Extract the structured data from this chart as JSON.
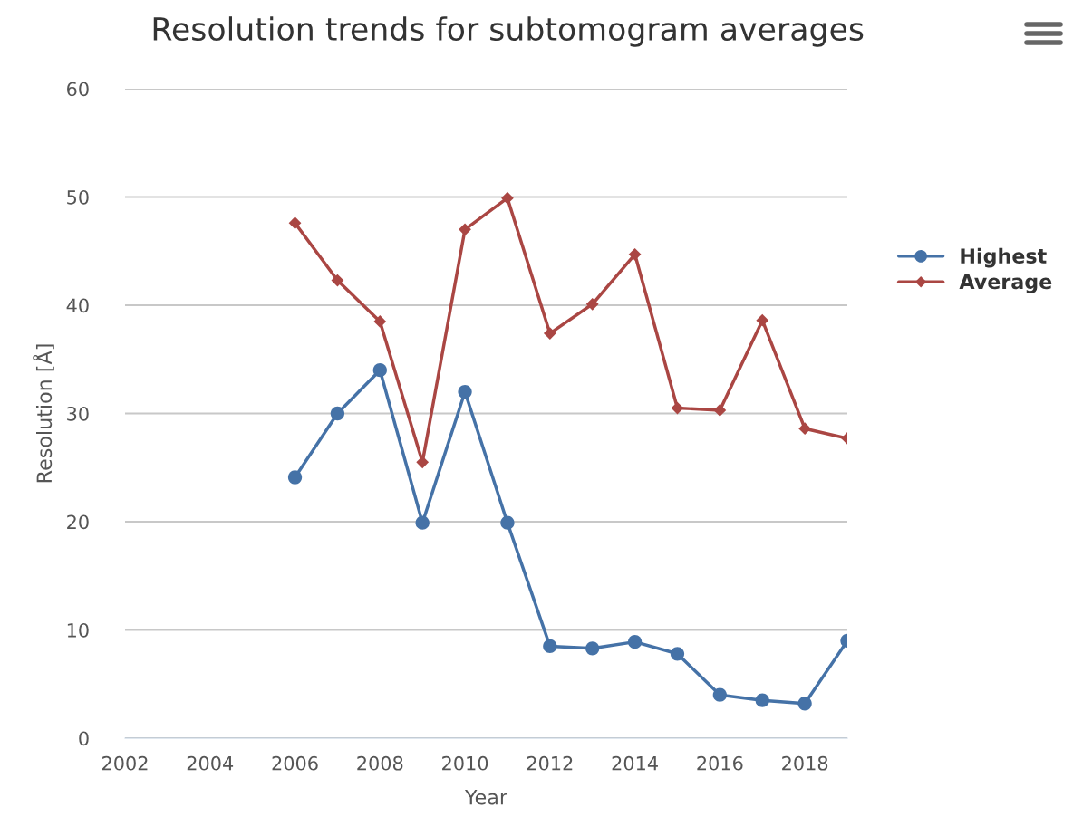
{
  "chart_data": {
    "type": "line",
    "title": "Resolution trends for subtomogram averages",
    "xlabel": "Year",
    "ylabel": "Resolution [Å]",
    "x": [
      2006,
      2007,
      2008,
      2009,
      2010,
      2011,
      2012,
      2013,
      2014,
      2015,
      2016,
      2017,
      2018,
      2019
    ],
    "series": [
      {
        "name": "Highest",
        "color": "#4572a7",
        "marker": "circle",
        "values": [
          24.1,
          30.0,
          34.0,
          19.9,
          32.0,
          19.9,
          8.5,
          8.3,
          8.9,
          7.8,
          4.0,
          3.5,
          3.2,
          9.0
        ]
      },
      {
        "name": "Average",
        "color": "#aa4643",
        "marker": "diamond",
        "values": [
          47.6,
          42.3,
          38.5,
          25.5,
          47.0,
          49.9,
          37.4,
          40.1,
          44.7,
          30.5,
          30.3,
          38.6,
          28.6,
          27.7
        ]
      }
    ],
    "xlim": [
      2002,
      2019
    ],
    "xticks": [
      2002,
      2004,
      2006,
      2008,
      2010,
      2012,
      2014,
      2016,
      2018
    ],
    "ylim": [
      0,
      60
    ],
    "yticks": [
      0,
      10,
      20,
      30,
      40,
      50,
      60
    ],
    "grid": "y",
    "legend": "right"
  }
}
